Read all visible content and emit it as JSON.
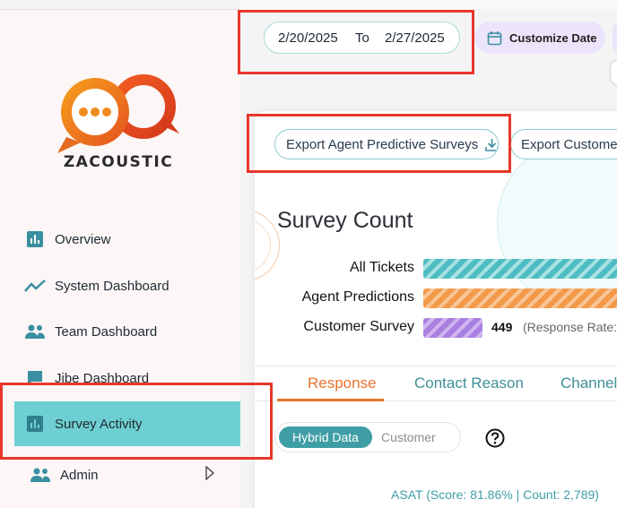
{
  "brand": {
    "logo_text": "ZACOUSTIC"
  },
  "sidebar": {
    "items": [
      {
        "label": "Overview",
        "icon": "bar-chart-icon"
      },
      {
        "label": "System Dashboard",
        "icon": "trend-line-icon"
      },
      {
        "label": "Team Dashboard",
        "icon": "team-icon"
      },
      {
        "label": "Jibe Dashboard",
        "icon": "chat-icon"
      },
      {
        "label": "Survey Activity",
        "icon": "bar-chart-icon",
        "active": true
      },
      {
        "label": "Admin",
        "icon": "team-icon"
      }
    ]
  },
  "header": {
    "date_from": "2/20/2025",
    "date_to_label": "To",
    "date_to": "2/27/2025",
    "customize_date_label": "Customize Date"
  },
  "exports": {
    "agent_label": "Export Agent Predictive Surveys",
    "customer_label": "Export Customer"
  },
  "survey_count": {
    "title": "Survey Count",
    "rows": [
      {
        "label": "All Tickets"
      },
      {
        "label": "Agent Predictions"
      },
      {
        "label": "Customer Survey",
        "value": "449",
        "note": "(Response Rate:"
      }
    ]
  },
  "tabs": [
    "Response",
    "Contact Reason",
    "Channel"
  ],
  "toggle": {
    "on_label": "Hybrid Data",
    "off_label": "Customer"
  },
  "asat_text": "ASAT (Score: 81.86% | Count: 2,789)",
  "colors": {
    "accent_teal": "#6ecfd2",
    "tab_active": "#e8732f",
    "highlight": "#e8372a"
  }
}
